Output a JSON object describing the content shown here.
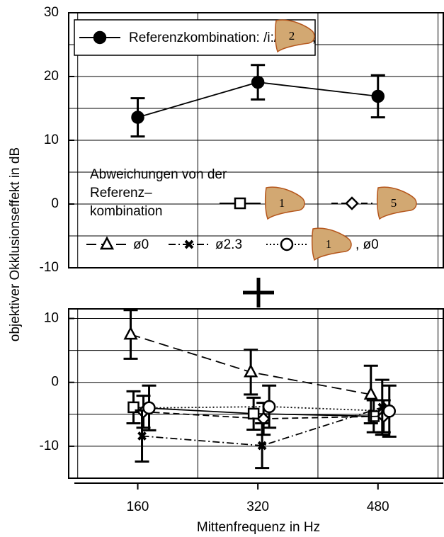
{
  "chart_data": [
    {
      "type": "line",
      "ylabel": "objektiver Okklusionseffekt in dB",
      "x": [
        160,
        320,
        480
      ],
      "xlim": [
        68,
        567
      ],
      "ylim": [
        -10,
        30
      ],
      "yticks": [
        -10,
        0,
        10,
        20,
        30
      ],
      "yminor": [
        -5,
        5,
        15,
        25
      ],
      "xgrid": [
        80,
        240,
        400,
        560
      ],
      "series": [
        {
          "name": "Referenzkombination: /i:/, ø1.3,",
          "icon": "2",
          "color": "#000000",
          "marker": "circle-filled",
          "dash": "solid",
          "values": [
            13.6,
            19.1,
            16.9
          ],
          "errors": [
            3.0,
            2.7,
            3.3
          ]
        }
      ]
    },
    {
      "type": "line",
      "xlabel": "Mittenfrequenz in Hz",
      "legend_title": [
        "Abweichungen von der",
        "Referenz–",
        "kombination"
      ],
      "x": [
        160,
        320,
        480
      ],
      "xlim": [
        68,
        567
      ],
      "xticks": [
        160,
        320,
        480
      ],
      "ylim": [
        -15,
        11.5
      ],
      "yticks": [
        -10,
        0,
        10
      ],
      "yminor": [
        -5,
        5
      ],
      "xgrid": [
        80,
        240,
        400,
        560
      ],
      "series": [
        {
          "icon": "1",
          "color": "#000000",
          "marker": "square",
          "dash": "solid",
          "values": [
            -3.9,
            -4.9,
            -5.3
          ],
          "errors": [
            2.5,
            2.5,
            2.5
          ]
        },
        {
          "icon": "5",
          "color": "#000000",
          "marker": "diamond",
          "dash": "dashed",
          "values": [
            -4.6,
            -5.7,
            -5.3
          ],
          "errors": [
            2.5,
            2.5,
            2.5
          ]
        },
        {
          "name": "ø0",
          "color": "#000000",
          "marker": "triangle",
          "dash": "longdash",
          "values": [
            7.5,
            1.6,
            -1.9
          ],
          "errors": [
            3.8,
            3.5,
            4.5
          ]
        },
        {
          "name": "ø2.3",
          "color": "#000000",
          "marker": "x",
          "dash": "dashdot",
          "values": [
            -8.4,
            -9.9,
            -3.9
          ],
          "errors": [
            4.0,
            3.5,
            4.3
          ]
        },
        {
          "icon": "1",
          "name": ", ø0",
          "color": "#000000",
          "marker": "circle",
          "dash": "dotted",
          "values": [
            -4.0,
            -3.8,
            -4.5
          ],
          "errors": [
            3.5,
            3.3,
            4.0
          ]
        }
      ]
    }
  ]
}
